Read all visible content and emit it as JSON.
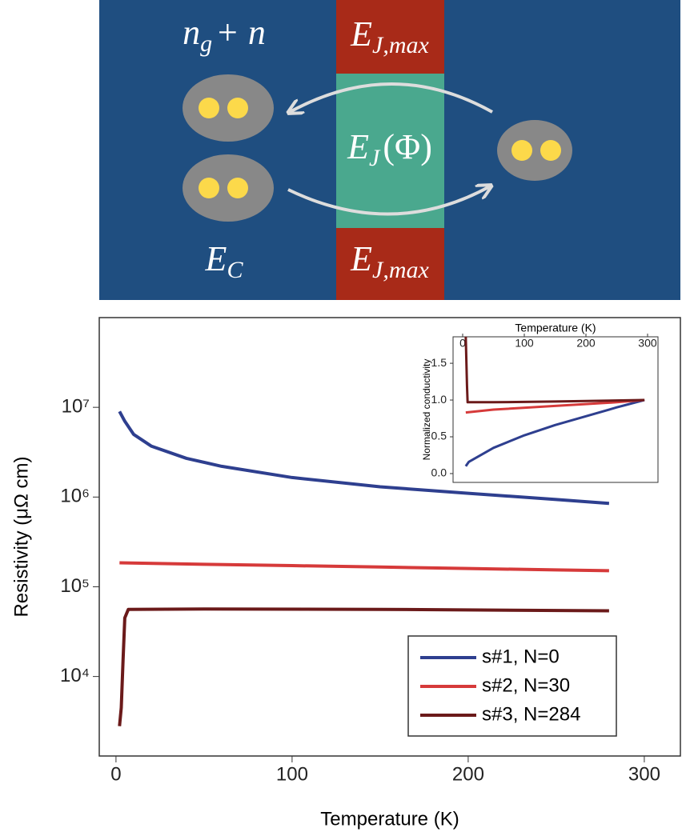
{
  "diagram": {
    "labels": [
      {
        "main": "n",
        "sub": "g",
        "rest": "+ n"
      },
      {
        "main": "E",
        "sub": "J,max"
      },
      {
        "main": "E",
        "sub": "J",
        "rest": "(Φ)"
      },
      {
        "main": "E",
        "sub": "C"
      },
      {
        "main": "E",
        "sub": "J,max"
      }
    ]
  },
  "chart_data": [
    {
      "type": "line",
      "xlabel": "Temperature (K)",
      "ylabel": "Resistivity (μΩ cm)",
      "xlim": [
        -9.5,
        320.5
      ],
      "xticks": [
        0,
        100,
        200,
        300
      ],
      "ylim": [
        1300,
        100000000
      ],
      "log_y": true,
      "yticks": [
        {
          "value": 10000,
          "label": "10⁴"
        },
        {
          "value": 100000,
          "label": "10⁵"
        },
        {
          "value": 1000000,
          "label": "10⁶"
        },
        {
          "value": 10000000,
          "label": "10⁷"
        }
      ],
      "legend": "lower right",
      "series": [
        {
          "name": "s#1, N=0",
          "color": "#2e3f8f",
          "x": [
            2,
            5,
            10,
            20,
            40,
            60,
            100,
            150,
            200,
            250,
            280
          ],
          "values": [
            9000000,
            7000000,
            5000000,
            3700000,
            2700000,
            2200000,
            1650000,
            1300000,
            1100000,
            940000,
            850000
          ]
        },
        {
          "name": "s#2, N=30",
          "color": "#d63a3a",
          "x": [
            2,
            50,
            100,
            150,
            200,
            250,
            280
          ],
          "values": [
            185000,
            178000,
            172000,
            166000,
            160000,
            154000,
            151000
          ]
        },
        {
          "name": "s#3, N=284",
          "color": "#6b1a1a",
          "x": [
            2,
            3,
            4,
            5,
            7,
            50,
            150,
            280
          ],
          "values": [
            2800,
            4500,
            15000,
            45000,
            56000,
            56500,
            56000,
            54000
          ]
        }
      ]
    },
    {
      "type": "line",
      "xlabel": "Temperature (K)",
      "ylabel": "Normalized conductivity",
      "xlim": [
        -15.6,
        316.9
      ],
      "xticks": [
        0,
        100,
        200,
        300
      ],
      "ylim": [
        -0.12,
        1.86
      ],
      "log_y": false,
      "yticks": [
        {
          "value": 0,
          "label": "0.0"
        },
        0.5,
        {
          "value": 1,
          "label": "1.0"
        },
        1.5
      ],
      "series": [
        {
          "color": "#2e3f8f",
          "x": [
            5,
            10,
            50,
            100,
            150,
            200,
            250,
            295
          ],
          "values": [
            0.1,
            0.16,
            0.35,
            0.52,
            0.66,
            0.78,
            0.9,
            1.0
          ]
        },
        {
          "color": "#d63a3a",
          "x": [
            5,
            50,
            150,
            250,
            295
          ],
          "values": [
            0.83,
            0.87,
            0.92,
            0.97,
            1.0
          ]
        },
        {
          "color": "#6b1a1a",
          "x": [
            5,
            7,
            8,
            50,
            150,
            295
          ],
          "values": [
            1.86,
            1.2,
            0.97,
            0.97,
            0.98,
            1.0
          ]
        }
      ]
    }
  ]
}
